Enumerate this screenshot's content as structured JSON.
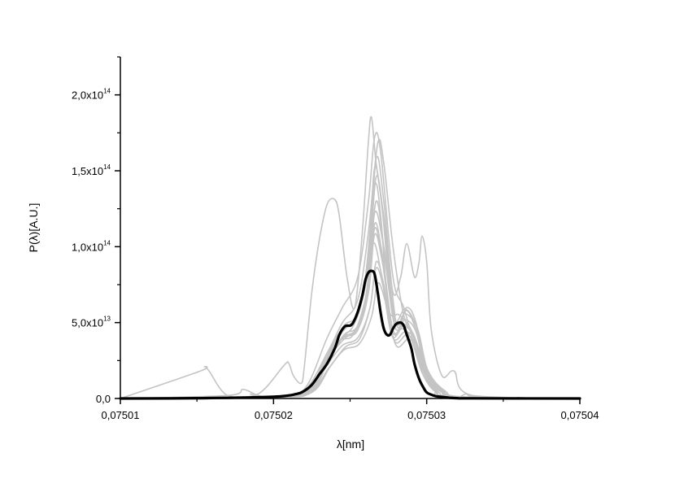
{
  "chart_data": {
    "type": "line",
    "xlabel": "λ[nm]",
    "ylabel": "P(λ)[A.U.]",
    "xlim": [
      0.07501,
      0.07504
    ],
    "ylim": [
      0,
      225000000000000.0
    ],
    "x_ticks": [
      {
        "value": 0.07501,
        "label": "0,07501"
      },
      {
        "value": 0.07502,
        "label": "0,07502"
      },
      {
        "value": 0.07503,
        "label": "0,07503"
      },
      {
        "value": 0.07504,
        "label": "0,07504"
      }
    ],
    "y_ticks": [
      {
        "value": 0,
        "mantissa": "0,0",
        "exp": ""
      },
      {
        "value": 50000000000000.0,
        "mantissa": "5,0x10",
        "exp": "13"
      },
      {
        "value": 100000000000000.0,
        "mantissa": "1,0x10",
        "exp": "14"
      },
      {
        "value": 150000000000000.0,
        "mantissa": "1,5x10",
        "exp": "14"
      },
      {
        "value": 200000000000000.0,
        "mantissa": "2,0x10",
        "exp": "14"
      }
    ],
    "grid": false,
    "series": [
      {
        "role": "average",
        "color": "#000000",
        "x": [
          0.07501,
          0.075015,
          0.07502,
          0.0750215,
          0.075022,
          0.0750225,
          0.075023,
          0.0750235,
          0.075024,
          0.0750243,
          0.0750246,
          0.0750248,
          0.075025,
          0.0750252,
          0.0750255,
          0.0750258,
          0.075026,
          0.0750262,
          0.0750264,
          0.0750266,
          0.0750268,
          0.075027,
          0.0750272,
          0.0750274,
          0.0750276,
          0.0750278,
          0.075028,
          0.0750283,
          0.0750285,
          0.0750287,
          0.075029,
          0.0750292,
          0.0750295,
          0.0750298,
          0.07503,
          0.0750303,
          0.0750306,
          0.075031,
          0.0750315,
          0.075032,
          0.075033,
          0.07504
        ],
        "y": [
          0,
          200000000000.0,
          1200000000000.0,
          3000000000000.0,
          5000000000000.0,
          9000000000000.0,
          16000000000000.0,
          23000000000000.0,
          33000000000000.0,
          42000000000000.0,
          47000000000000.0,
          48000000000000.0,
          48000000000000.0,
          50000000000000.0,
          57000000000000.0,
          68000000000000.0,
          78000000000000.0,
          83000000000000.0,
          84000000000000.0,
          82000000000000.0,
          70000000000000.0,
          56000000000000.0,
          46000000000000.0,
          42000000000000.0,
          42000000000000.0,
          46000000000000.0,
          49000000000000.0,
          50000000000000.0,
          48000000000000.0,
          42000000000000.0,
          33000000000000.0,
          23000000000000.0,
          13000000000000.0,
          7000000000000.0,
          4000000000000.0,
          2500000000000.0,
          1500000000000.0,
          1000000000000.0,
          500000000000.0,
          200000000000.0,
          100000000000.0,
          0
        ]
      },
      {
        "role": "sample",
        "color": "#c4c4c4",
        "x": [
          0.07501,
          0.0750152,
          0.0750155,
          0.0750158,
          0.075017,
          0.075019,
          0.0750207,
          0.075021,
          0.0750213,
          0.0750218,
          0.075022,
          0.0750225,
          0.075023,
          0.0750235,
          0.075024,
          0.0750243,
          0.0750248,
          0.0750253,
          0.0750258,
          0.0750262,
          0.0750264,
          0.0750267,
          0.0750272,
          0.0750278,
          0.0750283,
          0.0750287,
          0.0750292,
          0.0750295,
          0.0750297,
          0.07503,
          0.0750303,
          0.075031,
          0.0750318,
          0.075033,
          0.07504
        ],
        "y": [
          0,
          18000000000000.0,
          21000000000000.0,
          18000000000000.0,
          2000000000000.0,
          3000000000000.0,
          22000000000000.0,
          23000000000000.0,
          15000000000000.0,
          10000000000000.0,
          20000000000000.0,
          70000000000000.0,
          105000000000000.0,
          128000000000000.0,
          131000000000000.0,
          120000000000000.0,
          80000000000000.0,
          60000000000000.0,
          110000000000000.0,
          170000000000000.0,
          185000000000000.0,
          155000000000000.0,
          120000000000000.0,
          70000000000000.0,
          80000000000000.0,
          102000000000000.0,
          80000000000000.0,
          90000000000000.0,
          107000000000000.0,
          90000000000000.0,
          45000000000000.0,
          15000000000000.0,
          18000000000000.0,
          2000000000000.0,
          0
        ]
      },
      {
        "role": "sample",
        "color": "#c4c4c4",
        "x": [
          0.07501,
          0.07502,
          0.075022,
          0.0750235,
          0.0750245,
          0.0750255,
          0.0750262,
          0.0750266,
          0.075027,
          0.0750278,
          0.0750285,
          0.0750292,
          0.0750298,
          0.0750305,
          0.0750315,
          0.07504
        ],
        "y": [
          0,
          1000000000000.0,
          6000000000000.0,
          40000000000000.0,
          60000000000000.0,
          80000000000000.0,
          130000000000000.0,
          172000000000000.0,
          162000000000000.0,
          80000000000000.0,
          60000000000000.0,
          35000000000000.0,
          15000000000000.0,
          5000000000000.0,
          1000000000000.0,
          0
        ]
      },
      {
        "role": "sample",
        "color": "#c4c4c4",
        "x": [
          0.07501,
          0.07502,
          0.075022,
          0.0750235,
          0.0750245,
          0.0750255,
          0.0750262,
          0.0750268,
          0.0750272,
          0.0750278,
          0.0750285,
          0.0750292,
          0.0750298,
          0.0750306,
          0.0750318,
          0.07504
        ],
        "y": [
          0,
          1000000000000.0,
          5000000000000.0,
          30000000000000.0,
          50000000000000.0,
          65000000000000.0,
          110000000000000.0,
          168000000000000.0,
          155000000000000.0,
          100000000000000.0,
          55000000000000.0,
          40000000000000.0,
          20000000000000.0,
          6000000000000.0,
          1000000000000.0,
          0
        ]
      },
      {
        "role": "sample",
        "color": "#c4c4c4",
        "x": [
          0.07501,
          0.07502,
          0.075022,
          0.0750235,
          0.0750245,
          0.0750253,
          0.075026,
          0.0750266,
          0.075027,
          0.0750275,
          0.0750282,
          0.075029,
          0.0750297,
          0.0750305,
          0.0750318,
          0.07504
        ],
        "y": [
          0,
          1000000000000.0,
          4000000000000.0,
          25000000000000.0,
          40000000000000.0,
          50000000000000.0,
          80000000000000.0,
          140000000000000.0,
          120000000000000.0,
          60000000000000.0,
          55000000000000.0,
          45000000000000.0,
          20000000000000.0,
          6000000000000.0,
          1000000000000.0,
          0
        ]
      },
      {
        "role": "sample",
        "color": "#c4c4c4",
        "x": [
          0.07501,
          0.07502,
          0.0750222,
          0.0750235,
          0.0750245,
          0.0750255,
          0.0750262,
          0.0750267,
          0.0750272,
          0.075028,
          0.0750287,
          0.0750293,
          0.07503,
          0.075031,
          0.0750322,
          0.07504
        ],
        "y": [
          0,
          1000000000000.0,
          4000000000000.0,
          30000000000000.0,
          45000000000000.0,
          55000000000000.0,
          90000000000000.0,
          158000000000000.0,
          130000000000000.0,
          50000000000000.0,
          60000000000000.0,
          50000000000000.0,
          15000000000000.0,
          4000000000000.0,
          1000000000000.0,
          0
        ]
      },
      {
        "role": "sample",
        "color": "#c4c4c4",
        "x": [
          0.07501,
          0.07502,
          0.0750225,
          0.0750237,
          0.0750247,
          0.0750255,
          0.0750262,
          0.0750266,
          0.0750271,
          0.0750278,
          0.0750285,
          0.0750292,
          0.0750299,
          0.0750308,
          0.075032,
          0.07504
        ],
        "y": [
          0,
          1000000000000.0,
          5000000000000.0,
          28000000000000.0,
          40000000000000.0,
          45000000000000.0,
          70000000000000.0,
          115000000000000.0,
          95000000000000.0,
          45000000000000.0,
          48000000000000.0,
          40000000000000.0,
          16000000000000.0,
          4000000000000.0,
          1000000000000.0,
          0
        ]
      },
      {
        "role": "sample",
        "color": "#c4c4c4",
        "x": [
          0.07501,
          0.07502,
          0.0750223,
          0.0750235,
          0.0750245,
          0.0750255,
          0.0750263,
          0.0750267,
          0.0750272,
          0.0750278,
          0.0750286,
          0.0750293,
          0.07503,
          0.075031,
          0.0750322,
          0.07504
        ],
        "y": [
          0,
          1000000000000.0,
          4000000000000.0,
          22000000000000.0,
          35000000000000.0,
          40000000000000.0,
          60000000000000.0,
          90000000000000.0,
          75000000000000.0,
          40000000000000.0,
          44000000000000.0,
          38000000000000.0,
          15000000000000.0,
          4000000000000.0,
          1000000000000.0,
          0
        ]
      },
      {
        "role": "sample",
        "color": "#c4c4c4",
        "x": [
          0.07501,
          0.075017,
          0.075018,
          0.075019,
          0.07502,
          0.0750223,
          0.0750235,
          0.0750245,
          0.0750254,
          0.0750262,
          0.0750267,
          0.0750272,
          0.075028,
          0.0750287,
          0.0750293,
          0.0750301,
          0.0750312,
          0.0750325,
          0.07504
        ],
        "y": [
          0,
          2000000000000.0,
          6000000000000.0,
          2000000000000.0,
          1000000000000.0,
          6000000000000.0,
          30000000000000.0,
          46000000000000.0,
          52000000000000.0,
          85000000000000.0,
          130000000000000.0,
          100000000000000.0,
          50000000000000.0,
          58000000000000.0,
          45000000000000.0,
          18000000000000.0,
          5000000000000.0,
          1000000000000.0,
          0
        ]
      },
      {
        "role": "sample",
        "color": "#c4c4c4",
        "x": [
          0.07501,
          0.07502,
          0.0750222,
          0.0750233,
          0.0750243,
          0.0750252,
          0.075026,
          0.0750265,
          0.075027,
          0.0750277,
          0.0750284,
          0.075029,
          0.0750297,
          0.0750306,
          0.0750318,
          0.07504
        ],
        "y": [
          0,
          1000000000000.0,
          5000000000000.0,
          24000000000000.0,
          38000000000000.0,
          42000000000000.0,
          66000000000000.0,
          102000000000000.0,
          84000000000000.0,
          42000000000000.0,
          46000000000000.0,
          39000000000000.0,
          17000000000000.0,
          5000000000000.0,
          1000000000000.0,
          0
        ]
      },
      {
        "role": "sample",
        "color": "#c4c4c4",
        "x": [
          0.07501,
          0.07502,
          0.0750224,
          0.0750236,
          0.0750246,
          0.0750256,
          0.0750264,
          0.0750268,
          0.0750273,
          0.075028,
          0.0750288,
          0.0750295,
          0.0750302,
          0.0750311,
          0.0750322,
          0.07504
        ],
        "y": [
          0,
          1000000000000.0,
          4000000000000.0,
          20000000000000.0,
          32000000000000.0,
          36000000000000.0,
          54000000000000.0,
          76000000000000.0,
          64000000000000.0,
          35000000000000.0,
          39000000000000.0,
          33000000000000.0,
          13000000000000.0,
          4000000000000.0,
          1000000000000.0,
          0
        ]
      },
      {
        "role": "sample",
        "color": "#c4c4c4",
        "x": [
          0.07501,
          0.07502,
          0.0750224,
          0.0750236,
          0.0750246,
          0.0750255,
          0.0750262,
          0.0750266,
          0.0750271,
          0.0750279,
          0.0750286,
          0.0750293,
          0.07503,
          0.075031,
          0.0750322,
          0.07504
        ],
        "y": [
          0,
          1000000000000.0,
          4000000000000.0,
          26000000000000.0,
          42000000000000.0,
          48000000000000.0,
          75000000000000.0,
          122000000000000.0,
          105000000000000.0,
          48000000000000.0,
          52000000000000.0,
          44000000000000.0,
          17000000000000.0,
          5000000000000.0,
          1000000000000.0,
          0
        ]
      },
      {
        "role": "sample",
        "color": "#c4c4c4",
        "x": [
          0.07501,
          0.07502,
          0.0750223,
          0.0750235,
          0.0750245,
          0.0750254,
          0.0750262,
          0.0750267,
          0.0750272,
          0.0750279,
          0.0750286,
          0.0750294,
          0.0750301,
          0.0750311,
          0.0750322,
          0.07504
        ],
        "y": [
          0,
          1000000000000.0,
          5000000000000.0,
          27000000000000.0,
          44000000000000.0,
          54000000000000.0,
          88000000000000.0,
          146000000000000.0,
          118000000000000.0,
          52000000000000.0,
          56000000000000.0,
          46000000000000.0,
          17000000000000.0,
          5000000000000.0,
          1000000000000.0,
          0
        ]
      },
      {
        "role": "sample",
        "color": "#c4c4c4",
        "x": [
          0.07501,
          0.07502,
          0.0750222,
          0.0750234,
          0.0750244,
          0.0750254,
          0.0750262,
          0.0750266,
          0.0750271,
          0.0750278,
          0.0750285,
          0.0750292,
          0.0750299,
          0.0750309,
          0.0750321,
          0.07504
        ],
        "y": [
          0,
          1000000000000.0,
          4000000000000.0,
          24000000000000.0,
          39000000000000.0,
          45000000000000.0,
          70000000000000.0,
          108000000000000.0,
          90000000000000.0,
          44000000000000.0,
          48000000000000.0,
          40000000000000.0,
          16000000000000.0,
          5000000000000.0,
          1000000000000.0,
          0
        ]
      },
      {
        "role": "sample",
        "color": "#c4c4c4",
        "x": [
          0.07501,
          0.07502,
          0.0750225,
          0.0750237,
          0.0750247,
          0.0750256,
          0.0750263,
          0.0750267,
          0.0750272,
          0.0750279,
          0.0750287,
          0.0750294,
          0.0750301,
          0.0750311,
          0.0750323,
          0.07504
        ],
        "y": [
          0,
          1000000000000.0,
          4000000000000.0,
          21000000000000.0,
          34000000000000.0,
          39000000000000.0,
          60000000000000.0,
          86000000000000.0,
          72000000000000.0,
          38000000000000.0,
          42000000000000.0,
          35000000000000.0,
          14000000000000.0,
          4000000000000.0,
          1000000000000.0,
          0
        ]
      },
      {
        "role": "sample",
        "color": "#c4c4c4",
        "x": [
          0.07501,
          0.07502,
          0.0750223,
          0.0750236,
          0.0750246,
          0.0750255,
          0.0750262,
          0.0750266,
          0.0750271,
          0.0750278,
          0.0750286,
          0.0750293,
          0.07503,
          0.075031,
          0.0750322,
          0.07504
        ],
        "y": [
          0,
          1000000000000.0,
          5000000000000.0,
          30000000000000.0,
          48000000000000.0,
          56000000000000.0,
          94000000000000.0,
          152000000000000.0,
          124000000000000.0,
          54000000000000.0,
          59000000000000.0,
          48000000000000.0,
          18000000000000.0,
          5000000000000.0,
          1000000000000.0,
          0
        ]
      },
      {
        "role": "sample",
        "color": "#c4c4c4",
        "x": [
          0.07501,
          0.075018,
          0.0750185,
          0.075019,
          0.07502,
          0.0750223,
          0.0750235,
          0.0750245,
          0.0750254,
          0.0750262,
          0.0750266,
          0.0750271,
          0.0750278,
          0.0750285,
          0.0750292,
          0.0750299,
          0.0750309,
          0.075032,
          0.0750326,
          0.0750335,
          0.07504
        ],
        "y": [
          0,
          1000000000000.0,
          3000000000000.0,
          1000000000000.0,
          1000000000000.0,
          5000000000000.0,
          25000000000000.0,
          40000000000000.0,
          46000000000000.0,
          72000000000000.0,
          112000000000000.0,
          92000000000000.0,
          45000000000000.0,
          49000000000000.0,
          41000000000000.0,
          16000000000000.0,
          5000000000000.0,
          1000000000000.0,
          3000000000000.0,
          1000000000000.0,
          0
        ]
      }
    ]
  }
}
